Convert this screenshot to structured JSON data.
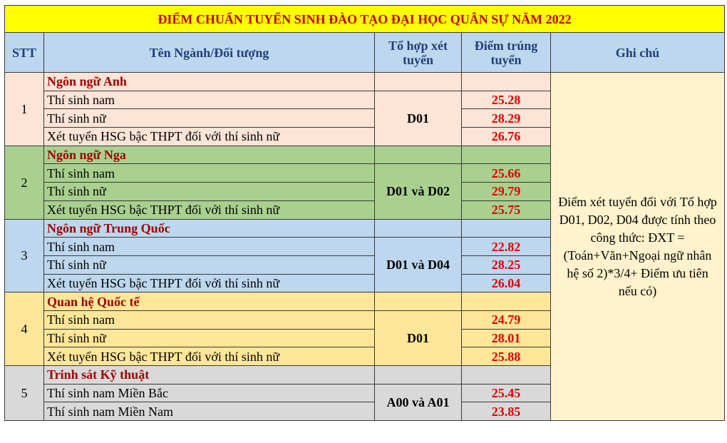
{
  "title": "ĐIỂM CHUẨN TUYỂN SINH ĐÀO TẠO ĐẠI HỌC QUÂN SỰ NĂM 2022",
  "headers": {
    "stt": "STT",
    "name": "Tên Ngành/Đối tượng",
    "combo": "Tổ hợp xét tuyển",
    "score": "Điểm trúng tuyển",
    "note": "Ghi chú"
  },
  "note": "Điểm xét tuyển đối với Tổ hợp D01, D02, D04 được tính theo công thức: ĐXT = (Toán+Văn+Ngoại ngữ nhân hệ số 2)*3/4+ Điểm ưu tiên nếu có)",
  "groups": [
    {
      "stt": "1",
      "name": "Ngôn ngữ Anh",
      "combo": "D01",
      "color": "#fce4d6",
      "rows": [
        {
          "label": "Thí sinh nam",
          "score": "25.28"
        },
        {
          "label": "Thí sinh nữ",
          "score": "28.29"
        },
        {
          "label": "Xét tuyển HSG bậc THPT đối với thí sinh nữ",
          "score": "26.76"
        }
      ]
    },
    {
      "stt": "2",
      "name": "Ngôn ngữ Nga",
      "combo": "D01 và D02",
      "color": "#a9d08e",
      "rows": [
        {
          "label": "Thí sinh nam",
          "score": "25.66"
        },
        {
          "label": "Thí sinh nữ",
          "score": "29.79"
        },
        {
          "label": "Xét tuyển HSG bậc THPT đối với thí sinh nữ",
          "score": "25.75"
        }
      ]
    },
    {
      "stt": "3",
      "name": "Ngôn ngữ Trung Quốc",
      "combo": "D01 và D04",
      "color": "#bdd7ee",
      "rows": [
        {
          "label": "Thí sinh nam",
          "score": "22.82"
        },
        {
          "label": "Thí sinh nữ",
          "score": "28.25"
        },
        {
          "label": "Xét tuyển HSG bậc THPT đối với thí sinh nữ",
          "score": "26.04"
        }
      ]
    },
    {
      "stt": "4",
      "name": "Quan hệ Quốc tế",
      "combo": "D01",
      "color": "#ffe699",
      "rows": [
        {
          "label": "Thí sinh nam",
          "score": "24.79"
        },
        {
          "label": "Thí sinh nữ",
          "score": "28.01"
        },
        {
          "label": "Xét tuyển HSG bậc THPT đối với thí sinh nữ",
          "score": "25.88"
        }
      ]
    },
    {
      "stt": "5",
      "name": "Trinh sát Kỹ thuật",
      "combo": "A00 và A01",
      "color": "#d9d9d9",
      "rows": [
        {
          "label": "Thí sinh nam Miền Bắc",
          "score": "25.45"
        },
        {
          "label": "Thí sinh nam Miền Nam",
          "score": "23.85"
        }
      ]
    }
  ]
}
